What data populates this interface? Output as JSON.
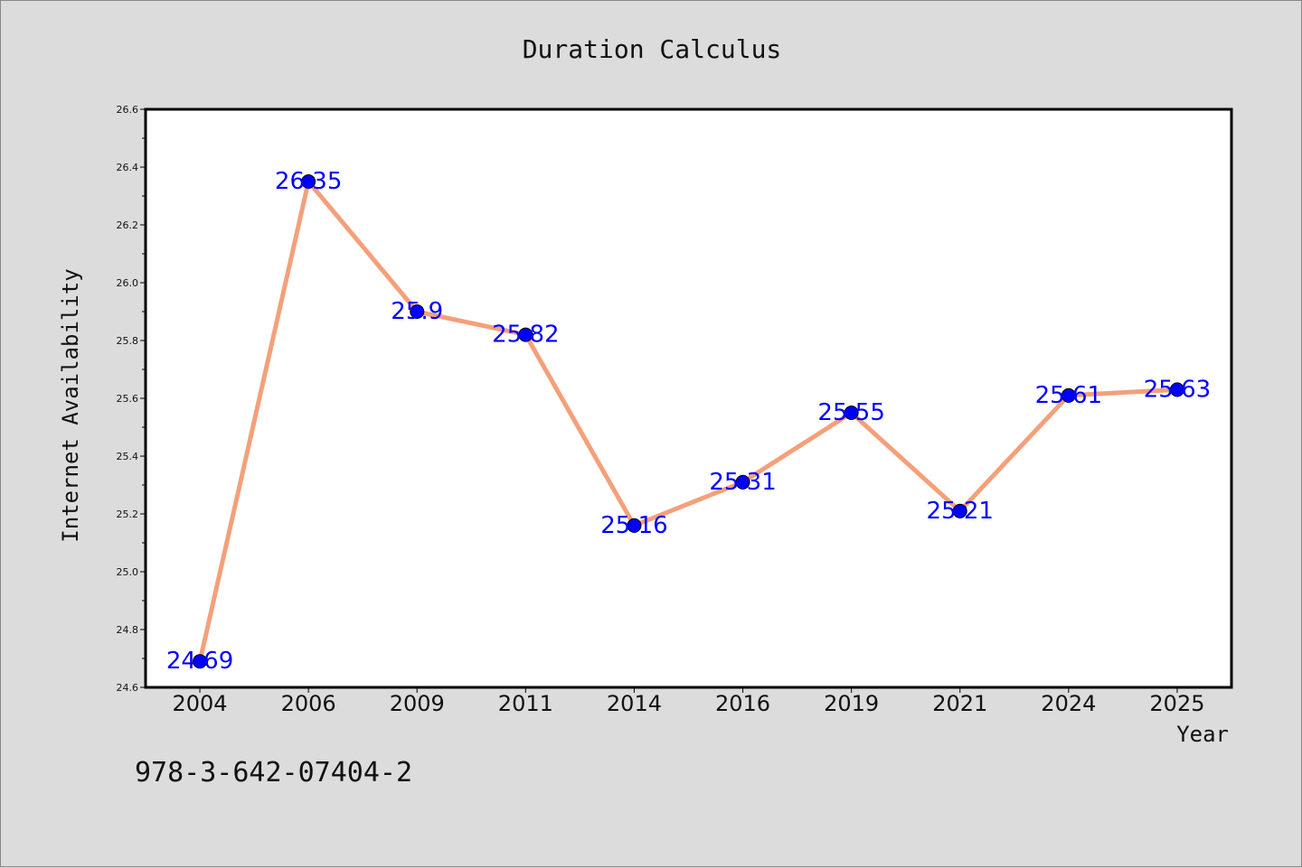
{
  "chart_data": {
    "type": "line",
    "title": "Duration Calculus",
    "xlabel": "Year",
    "ylabel": "Internet Availability",
    "categories": [
      "2004",
      "2006",
      "2009",
      "2011",
      "2014",
      "2016",
      "2019",
      "2021",
      "2024",
      "2025"
    ],
    "series": [
      {
        "values": [
          24.69,
          26.35,
          25.9,
          25.82,
          25.16,
          25.31,
          25.55,
          25.21,
          25.61,
          25.63
        ],
        "data_labels": [
          "24.69",
          "26.35",
          "25.9",
          "25.82",
          "25.16",
          "25.31",
          "25.55",
          "25.21",
          "25.61",
          "25.63"
        ],
        "line_color": "#f4a07a",
        "marker_color": "#0000ff"
      }
    ],
    "ylim": [
      24.6,
      26.6
    ],
    "yticks": [
      "24.6",
      "24.8",
      "25.0",
      "25.2",
      "25.4",
      "25.6",
      "25.8",
      "26.0",
      "26.2",
      "26.4",
      "26.6"
    ],
    "grid": false,
    "legend": "none"
  },
  "footer_text": "978-3-642-07404-2",
  "colors": {
    "background": "#dcdcdc",
    "plot_background": "#ffffff",
    "line": "#f4a07a",
    "marker": "#0000ff",
    "data_label": "#0000ff"
  }
}
